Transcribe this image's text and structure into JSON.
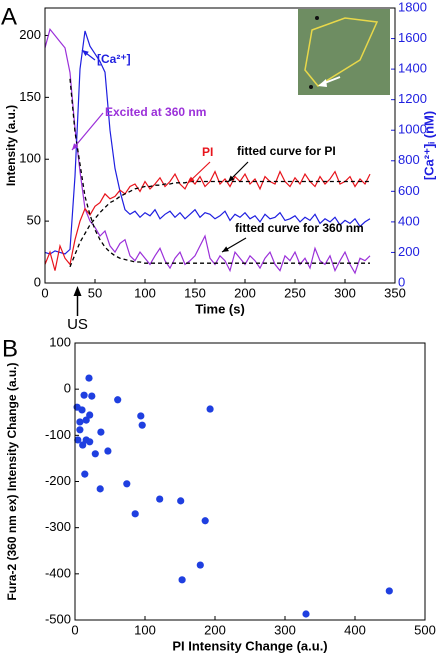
{
  "chart_data": [
    {
      "type": "line",
      "panel_label": "A",
      "xlabel": "Time (s)",
      "ylabel": "Intensity (a.u.)",
      "y2label": "[Ca²⁺]ᵢ (nM)",
      "annotations": [
        "US"
      ],
      "xlim": [
        0,
        350
      ],
      "xticks": [
        0,
        50,
        100,
        150,
        200,
        250,
        300,
        350
      ],
      "ylim": [
        0,
        222.2
      ],
      "yticks": [
        0,
        50,
        100,
        150,
        200
      ],
      "y2lim": [
        0,
        1800
      ],
      "y2ticks": [
        0,
        200,
        400,
        600,
        800,
        1000,
        1200,
        1400,
        1600,
        1800
      ],
      "x": [
        0,
        5,
        10,
        15,
        20,
        25,
        30,
        35,
        40,
        45,
        50,
        55,
        60,
        65,
        70,
        75,
        80,
        85,
        90,
        95,
        100,
        105,
        110,
        115,
        120,
        125,
        130,
        135,
        140,
        145,
        150,
        155,
        160,
        165,
        170,
        175,
        180,
        185,
        190,
        195,
        200,
        205,
        210,
        215,
        220,
        225,
        230,
        235,
        240,
        245,
        250,
        255,
        260,
        265,
        270,
        275,
        280,
        285,
        290,
        295,
        300,
        305,
        310,
        315,
        320,
        325
      ],
      "series": [
        {
          "name": "Excited at 360 nm",
          "color": "#9b30d9",
          "style": "solid",
          "values": [
            190,
            205,
            200,
            195,
            190,
            170,
            125,
            90,
            60,
            50,
            45,
            38,
            42,
            30,
            25,
            32,
            35,
            22,
            18,
            25,
            20,
            15,
            22,
            28,
            18,
            12,
            20,
            25,
            15,
            18,
            22,
            30,
            38,
            20,
            15,
            22,
            18,
            10,
            25,
            20,
            15,
            22,
            18,
            12,
            20,
            25,
            15,
            10,
            22,
            18,
            25,
            15,
            20,
            12,
            28,
            18,
            15,
            22,
            10,
            18,
            25,
            15,
            8,
            20,
            18,
            22
          ]
        },
        {
          "name": "[Ca²⁺]",
          "color": "#1f1fe0",
          "style": "solid",
          "axis": "y2",
          "values": [
            200,
            190,
            210,
            200,
            190,
            220,
            700,
            1400,
            1650,
            1550,
            1500,
            1450,
            1380,
            1000,
            750,
            600,
            480,
            450,
            470,
            430,
            460,
            440,
            480,
            420,
            450,
            470,
            430,
            460,
            420,
            450,
            480,
            430,
            460,
            450,
            420,
            440,
            470,
            410,
            450,
            430,
            460,
            420,
            440,
            400,
            450,
            420,
            430,
            460,
            410,
            420,
            440,
            400,
            430,
            410,
            450,
            390,
            420,
            400,
            430,
            380,
            410,
            390,
            420,
            370,
            400,
            420
          ]
        },
        {
          "name": "PI",
          "color": "#e8141c",
          "style": "solid",
          "values": [
            15,
            25,
            10,
            30,
            20,
            15,
            35,
            50,
            60,
            55,
            62,
            65,
            72,
            68,
            70,
            75,
            72,
            78,
            80,
            74,
            82,
            76,
            80,
            85,
            78,
            82,
            88,
            80,
            76,
            84,
            80,
            86,
            78,
            82,
            90,
            80,
            84,
            78,
            86,
            82,
            88,
            80,
            84,
            76,
            86,
            82,
            80,
            90,
            82,
            78,
            85,
            80,
            88,
            82,
            78,
            86,
            80,
            84,
            90,
            80,
            82,
            86,
            78,
            84,
            80,
            88
          ]
        },
        {
          "name": "fitted curve for PI",
          "color": "#000000",
          "style": "dashed",
          "values": [
            null,
            null,
            null,
            null,
            null,
            13,
            23,
            33,
            40,
            47,
            52,
            57,
            61,
            65,
            67,
            70,
            72,
            74,
            76,
            77,
            78,
            78,
            79,
            79,
            80,
            80,
            81,
            81,
            81,
            82,
            82,
            82,
            82,
            82,
            82,
            82,
            82,
            82,
            82,
            82,
            82,
            82,
            82,
            82,
            82,
            82,
            82,
            82,
            82,
            82,
            82,
            82,
            82,
            82,
            82,
            82,
            82,
            82,
            82,
            82,
            82,
            82,
            82,
            82,
            82,
            82
          ]
        },
        {
          "name": "fitted curve for 360 nm",
          "color": "#000000",
          "style": "dashed",
          "values": [
            null,
            null,
            null,
            null,
            null,
            165,
            122,
            96,
            70,
            55,
            43,
            35,
            29,
            25,
            22,
            20,
            19,
            18,
            17,
            17,
            16,
            16,
            16,
            16,
            16,
            16,
            16,
            16,
            16,
            16,
            16,
            16,
            16,
            16,
            16,
            16,
            16,
            16,
            16,
            16,
            16,
            16,
            16,
            16,
            16,
            16,
            16,
            16,
            16,
            16,
            16,
            16,
            16,
            16,
            16,
            16,
            16,
            16,
            16,
            16,
            16,
            16,
            16,
            16,
            16,
            16
          ]
        }
      ]
    },
    {
      "type": "scatter",
      "panel_label": "B",
      "xlabel": "PI Intensity Change (a.u.)",
      "ylabel": "Fura-2 (360 nm ex) Intensity Change (a.u.)",
      "xlim": [
        0,
        500
      ],
      "xticks": [
        0,
        100,
        200,
        300,
        400,
        500
      ],
      "ylim": [
        -500,
        100
      ],
      "yticks": [
        -500,
        -400,
        -300,
        -200,
        -100,
        0,
        100
      ],
      "color": "#1f3fe0",
      "x": [
        3,
        7,
        4,
        7,
        10,
        13,
        16,
        20,
        24,
        21,
        11,
        14,
        16,
        21,
        29,
        37,
        47,
        36,
        61,
        74,
        86,
        94,
        96,
        121,
        151,
        153,
        179,
        186,
        193,
        330,
        449
      ],
      "values": [
        -39,
        -71,
        -110,
        -88,
        -45,
        -13,
        -110,
        24,
        -15,
        -114,
        -121,
        -184,
        -67,
        -56,
        -140,
        -93,
        -134,
        -216,
        -23,
        -205,
        -270,
        -58,
        -78,
        -238,
        -242,
        -413,
        -381,
        -285,
        -43,
        -487,
        -437
      ]
    }
  ]
}
